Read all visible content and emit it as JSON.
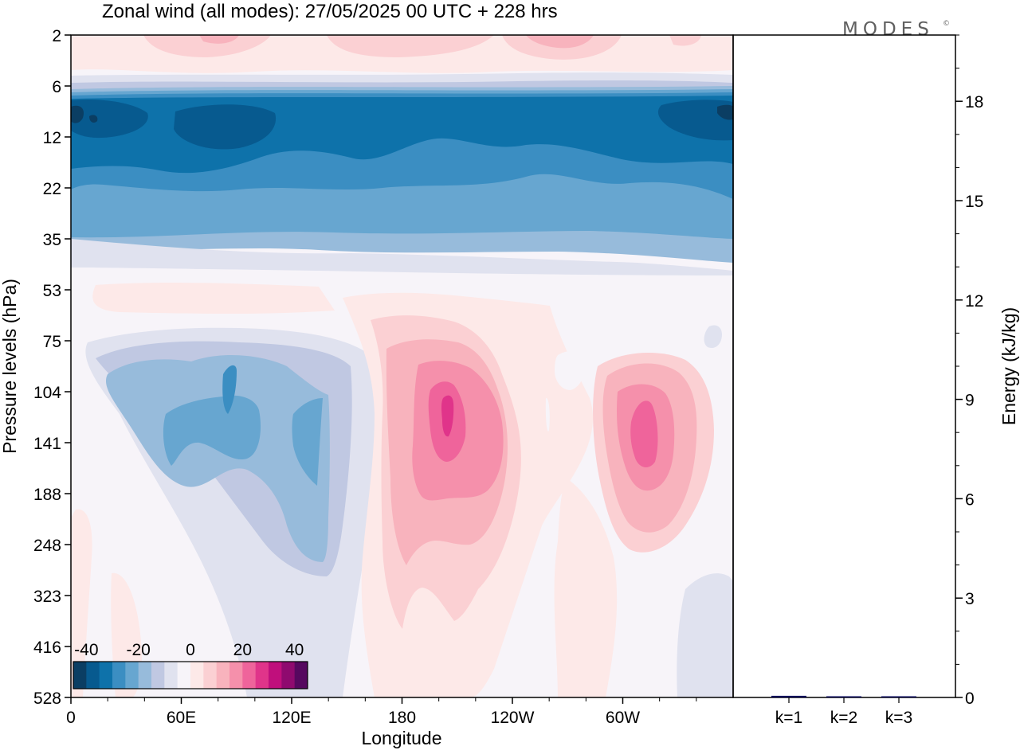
{
  "title": "Zonal wind (all modes):  27/05/2025  00 UTC  + 228 hrs",
  "logo": "MODES",
  "logo_mark": "©",
  "chart_data": [
    {
      "type": "heatmap",
      "title": "Zonal wind (all modes):  27/05/2025  00 UTC  + 228 hrs",
      "xlabel": "Longitude",
      "ylabel": "Pressure levels (hPa)",
      "x_ticks": [
        "0",
        "60E",
        "120E",
        "180",
        "120W",
        "60W"
      ],
      "y_ticks": [
        "2",
        "6",
        "12",
        "22",
        "35",
        "53",
        "75",
        "104",
        "141",
        "188",
        "248",
        "323",
        "416",
        "528"
      ],
      "y_scale": "pressure levels, top to bottom",
      "colorbar": {
        "ticks": [
          "-40",
          "-20",
          "0",
          "20",
          "40"
        ],
        "levels": [
          -40,
          -35,
          -30,
          -25,
          -20,
          -15,
          -10,
          -5,
          0,
          5,
          10,
          15,
          20,
          25,
          30,
          35,
          40
        ],
        "colors": [
          "#0b3e63",
          "#075a8f",
          "#0e72aa",
          "#3b8ec2",
          "#67a6d0",
          "#97bbdb",
          "#c0c8e2",
          "#e0e2ef",
          "#f7f4f9",
          "#fde9e8",
          "#fbd0d3",
          "#f8b3bd",
          "#f590ab",
          "#ef649b",
          "#e0348a",
          "#c00f7c",
          "#8f0a6f",
          "#56085f"
        ]
      },
      "regions": [
        {
          "name": "upper-pink-band",
          "lon": [
            0,
            360
          ],
          "level": [
            2,
            5
          ],
          "value": 5
        },
        {
          "name": "upper-blue-jet",
          "lon": [
            0,
            360
          ],
          "level": [
            6,
            30
          ],
          "value": -25
        },
        {
          "name": "jet-core-west",
          "lon": [
            0,
            30
          ],
          "level": [
            8,
            12
          ],
          "value": -35
        },
        {
          "name": "jet-core-mid",
          "lon": [
            45,
            110
          ],
          "level": [
            9,
            14
          ],
          "value": -30
        },
        {
          "name": "jet-core-east",
          "lon": [
            320,
            360
          ],
          "level": [
            8,
            13
          ],
          "value": -35
        },
        {
          "name": "easterly-cell",
          "lon": [
            30,
            150
          ],
          "level": [
            75,
            330
          ],
          "value": -15
        },
        {
          "name": "easterly-core",
          "lon": [
            75,
            90
          ],
          "level": [
            110,
            145
          ],
          "value": -25
        },
        {
          "name": "westerly-cell-1",
          "lon": [
            160,
            240
          ],
          "level": [
            55,
            400
          ],
          "value": 15
        },
        {
          "name": "westerly-core-1",
          "lon": [
            190,
            205
          ],
          "level": [
            100,
            130
          ],
          "value": 30
        },
        {
          "name": "westerly-cell-2",
          "lon": [
            280,
            340
          ],
          "level": [
            90,
            250
          ],
          "value": 20
        },
        {
          "name": "westerly-core-2",
          "lon": [
            305,
            320
          ],
          "level": [
            110,
            160
          ],
          "value": 30
        }
      ]
    },
    {
      "type": "bar",
      "categories": [
        "k=1",
        "k=2",
        "k=3"
      ],
      "values": [
        0.05,
        0.02,
        0.02
      ],
      "ylabel": "Energy (kJ/kg)",
      "y_ticks": [
        "0",
        "3",
        "6",
        "9",
        "12",
        "15",
        "18"
      ],
      "ylim": [
        0,
        20
      ],
      "bar_color": "#0a0a5a"
    }
  ]
}
